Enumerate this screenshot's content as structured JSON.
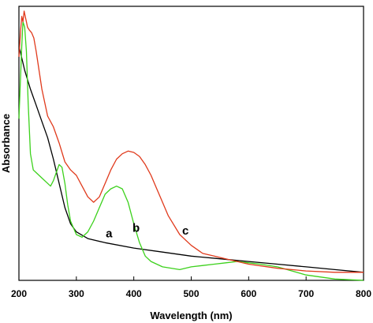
{
  "chart_data": {
    "type": "line",
    "title": "",
    "xlabel": "Wavelength (nm)",
    "ylabel": "Absorbance",
    "xlim": [
      200,
      800
    ],
    "ylim": [
      0,
      1
    ],
    "x_ticks": [
      200,
      300,
      400,
      500,
      600,
      700,
      800
    ],
    "y_ticks": [],
    "grid": false,
    "legend": "none",
    "series": [
      {
        "name": "a",
        "color": "#000000",
        "x": [
          200,
          210,
          220,
          230,
          240,
          250,
          260,
          270,
          280,
          290,
          300,
          320,
          350,
          400,
          450,
          500,
          550,
          600,
          650,
          700,
          750,
          800
        ],
        "y": [
          0.87,
          0.78,
          0.71,
          0.65,
          0.59,
          0.53,
          0.45,
          0.36,
          0.27,
          0.21,
          0.18,
          0.155,
          0.14,
          0.12,
          0.105,
          0.09,
          0.08,
          0.07,
          0.06,
          0.05,
          0.04,
          0.03
        ]
      },
      {
        "name": "b",
        "color": "#3cd11c",
        "x": [
          200,
          205,
          207,
          210,
          213,
          216,
          220,
          225,
          230,
          240,
          250,
          255,
          260,
          265,
          270,
          275,
          280,
          285,
          290,
          300,
          310,
          320,
          330,
          340,
          350,
          360,
          370,
          380,
          390,
          400,
          410,
          420,
          430,
          450,
          480,
          500,
          520,
          540,
          560,
          580,
          600,
          620,
          650,
          700,
          750,
          800
        ],
        "y": [
          0.6,
          0.87,
          0.96,
          0.94,
          0.85,
          0.66,
          0.47,
          0.41,
          0.4,
          0.38,
          0.36,
          0.35,
          0.37,
          0.4,
          0.43,
          0.42,
          0.36,
          0.28,
          0.22,
          0.17,
          0.16,
          0.18,
          0.22,
          0.27,
          0.32,
          0.34,
          0.35,
          0.34,
          0.29,
          0.21,
          0.14,
          0.09,
          0.07,
          0.05,
          0.04,
          0.05,
          0.055,
          0.06,
          0.065,
          0.07,
          0.065,
          0.06,
          0.05,
          0.02,
          0.005,
          0.0
        ]
      },
      {
        "name": "c",
        "color": "#e03a1c",
        "x": [
          200,
          203,
          205,
          207,
          209,
          211,
          213,
          215,
          218,
          222,
          226,
          230,
          235,
          240,
          250,
          260,
          270,
          280,
          290,
          300,
          310,
          320,
          330,
          340,
          350,
          360,
          370,
          380,
          390,
          400,
          410,
          420,
          430,
          440,
          450,
          460,
          480,
          500,
          520,
          540,
          560,
          580,
          600,
          650,
          700,
          750,
          800
        ],
        "y": [
          0.83,
          0.93,
          0.98,
          0.96,
          1.0,
          0.98,
          0.96,
          0.94,
          0.93,
          0.92,
          0.9,
          0.85,
          0.78,
          0.71,
          0.61,
          0.57,
          0.51,
          0.44,
          0.41,
          0.39,
          0.35,
          0.31,
          0.29,
          0.31,
          0.36,
          0.41,
          0.45,
          0.47,
          0.48,
          0.475,
          0.46,
          0.43,
          0.39,
          0.34,
          0.29,
          0.24,
          0.17,
          0.13,
          0.1,
          0.09,
          0.08,
          0.07,
          0.06,
          0.045,
          0.035,
          0.03,
          0.03
        ]
      }
    ],
    "annotations": [
      {
        "text": "a",
        "x": 357,
        "y": 0.16
      },
      {
        "text": "b",
        "x": 404,
        "y": 0.18
      },
      {
        "text": "c",
        "x": 490,
        "y": 0.17
      }
    ]
  }
}
